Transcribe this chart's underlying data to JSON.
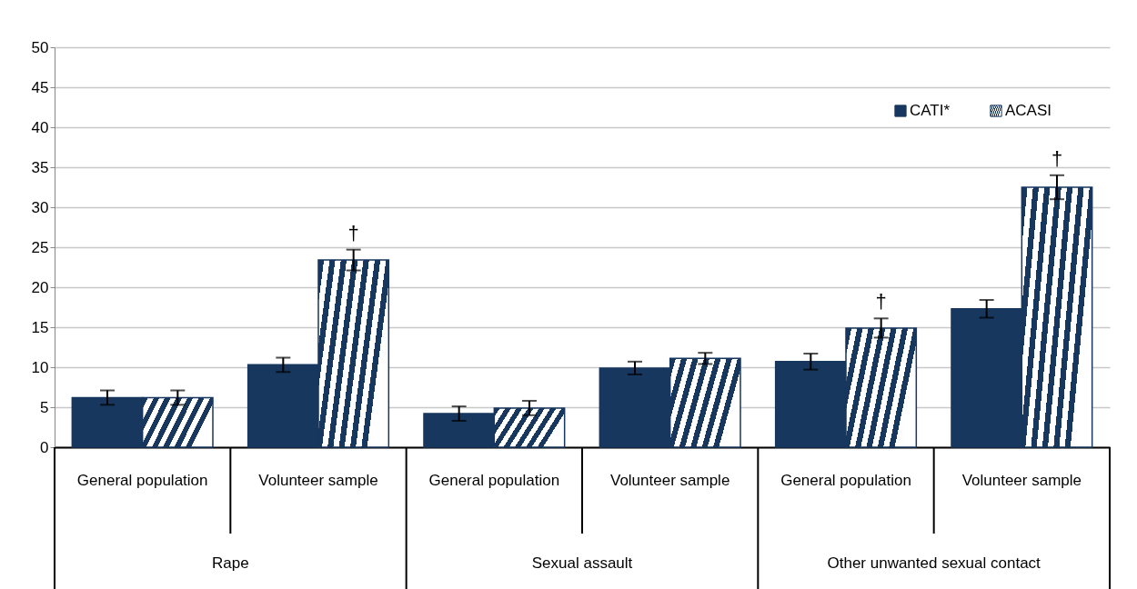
{
  "chart_data": {
    "type": "bar",
    "categories": [
      "General population",
      "Volunteer sample",
      "General population",
      "Volunteer sample",
      "General population",
      "Volunteer sample"
    ],
    "series": [
      {
        "name": "CATI*",
        "color": "#17375e",
        "values": [
          6.2,
          10.3,
          4.2,
          9.9,
          10.7,
          17.3
        ],
        "errors": [
          0.9,
          0.9,
          0.9,
          0.8,
          1.0,
          1.1
        ]
      },
      {
        "name": "ACASI",
        "color": "#17375e",
        "values": [
          6.2,
          23.4,
          4.9,
          11.1,
          14.9,
          32.5
        ],
        "errors": [
          0.9,
          1.3,
          0.9,
          0.7,
          1.2,
          1.5
        ],
        "value_labels": [
          null,
          "†",
          null,
          null,
          "†",
          "†"
        ]
      }
    ],
    "annotations": [
      "Rape",
      "Sexual assault",
      "Other unwanted sexual contact"
    ],
    "ylim": [
      0,
      50
    ],
    "yticks": [
      0,
      5,
      10,
      15,
      20,
      25,
      30,
      35,
      40,
      45,
      50
    ],
    "grid": "y",
    "legend": "top right"
  }
}
